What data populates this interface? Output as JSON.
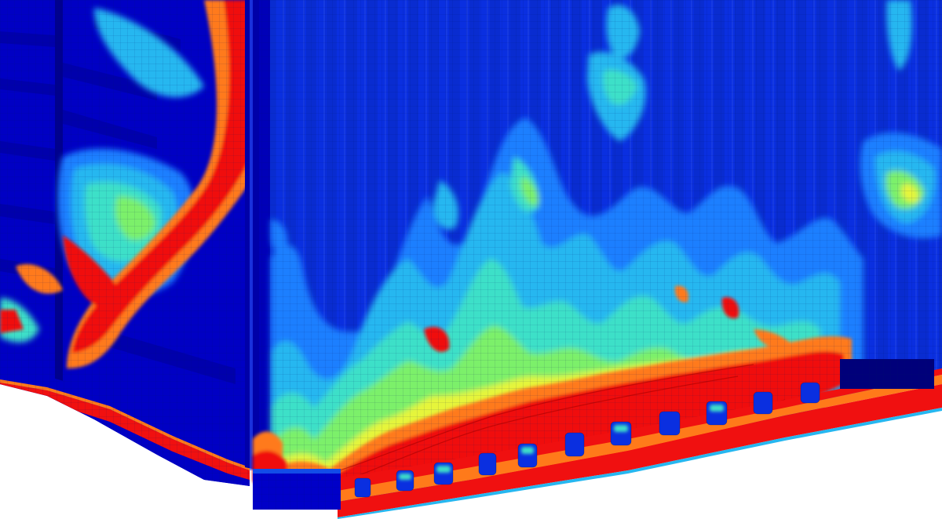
{
  "figure": {
    "subject": "fem-stress-contour-container-corner",
    "colormap": [
      "#0000c8",
      "#0a3fe0",
      "#1e7fff",
      "#26b7f0",
      "#3de0c8",
      "#7cf06a",
      "#e6f53a",
      "#ff7a1a",
      "#f01010"
    ],
    "background": "#ffffff",
    "mesh_color": "#001060"
  }
}
